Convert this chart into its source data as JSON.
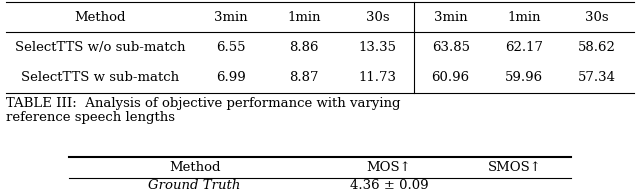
{
  "table_headers": [
    "Method",
    "3min",
    "1min",
    "30s",
    "3min",
    "1min",
    "30s"
  ],
  "table_rows": [
    [
      "SelectTTS w/o sub-match",
      "6.55",
      "8.86",
      "13.35",
      "63.85",
      "62.17",
      "58.62"
    ],
    [
      "SelectTTS w sub-match",
      "6.99",
      "8.87",
      "11.73",
      "60.96",
      "59.96",
      "57.34"
    ]
  ],
  "caption": "TABLE III:  Analysis of objective performance with varying\nreference speech lengths",
  "second_table_headers": [
    "Method",
    "MOS↑",
    "SMOS↑"
  ],
  "second_table_first_row": [
    "Ground Truth",
    "4.36 ± 0.09",
    ""
  ],
  "bg_color": "#ffffff",
  "text_color": "#000000",
  "font_size": 9.5,
  "caption_font_size": 9.5
}
